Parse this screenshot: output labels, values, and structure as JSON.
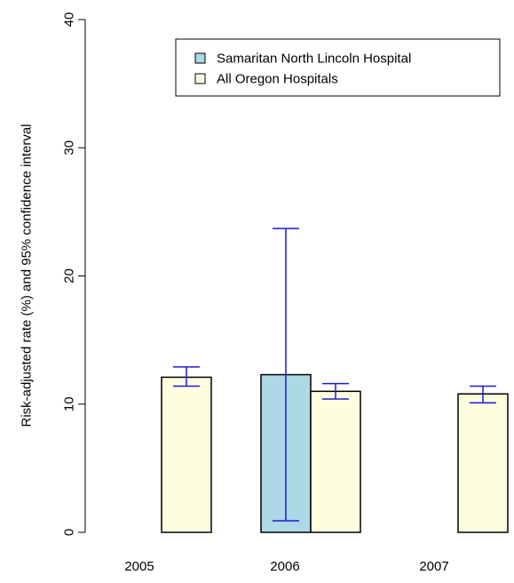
{
  "chart_data": {
    "type": "bar",
    "categories": [
      "2005",
      "2006",
      "2007"
    ],
    "ylabel": "Risk-adjusted rate (%) and 95% confidence interval",
    "xlabel": "",
    "ylim": [
      0,
      40
    ],
    "yticks": [
      0,
      10,
      20,
      30,
      40
    ],
    "legend_position": "top-right",
    "series": [
      {
        "name": "Samaritan North Lincoln Hospital",
        "color": "#add8e6",
        "values": [
          null,
          12.3,
          null
        ],
        "ci_lower": [
          null,
          0.9,
          null
        ],
        "ci_upper": [
          null,
          23.7,
          null
        ]
      },
      {
        "name": "All Oregon Hospitals",
        "color": "#fffde0",
        "values": [
          12.1,
          11.0,
          10.8
        ],
        "ci_lower": [
          11.4,
          10.4,
          10.1
        ],
        "ci_upper": [
          12.9,
          11.6,
          11.4
        ]
      }
    ],
    "error_bar_color": "#1c1cd0"
  }
}
